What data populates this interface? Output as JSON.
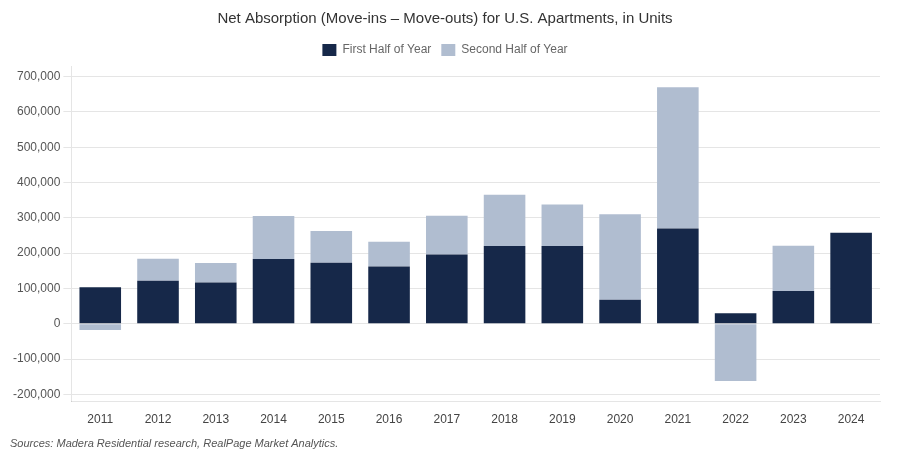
{
  "chart_data": {
    "type": "bar",
    "title": "Net Absorption (Move-ins – Move-outs) for U.S. Apartments, in Units",
    "categories": [
      "2011",
      "2012",
      "2013",
      "2014",
      "2015",
      "2016",
      "2017",
      "2018",
      "2019",
      "2020",
      "2021",
      "2022",
      "2023",
      "2024"
    ],
    "series": [
      {
        "name": "First Half of Year",
        "color": "#162849",
        "values": [
          103000,
          122000,
          117000,
          183000,
          173000,
          162000,
          196000,
          220000,
          220000,
          68000,
          270000,
          30000,
          93000,
          258000
        ]
      },
      {
        "name": "Second Half of Year",
        "color": "#b0bdd0",
        "values": [
          -18000,
          62000,
          55000,
          122000,
          90000,
          70000,
          110000,
          145000,
          118000,
          242000,
          400000,
          -162000,
          128000,
          0
        ]
      }
    ],
    "stacked": true,
    "ylim": [
      -220000,
      730000
    ],
    "yticks": [
      {
        "value": -200000,
        "label": "-200,000"
      },
      {
        "value": -100000,
        "label": "-100,000"
      },
      0,
      {
        "value": 100000,
        "label": "100,000"
      },
      {
        "value": 200000,
        "label": "200,000"
      },
      {
        "value": 300000,
        "label": "300,000"
      },
      {
        "value": 400000,
        "label": "400,000"
      },
      {
        "value": 500000,
        "label": "500,000"
      },
      {
        "value": 600000,
        "label": "600,000"
      },
      {
        "value": 700000,
        "label": "700,000"
      }
    ],
    "grid": true,
    "legend": "top",
    "annotations": [
      "Sources: Madera Residential research, RealPage Market Analytics."
    ]
  }
}
